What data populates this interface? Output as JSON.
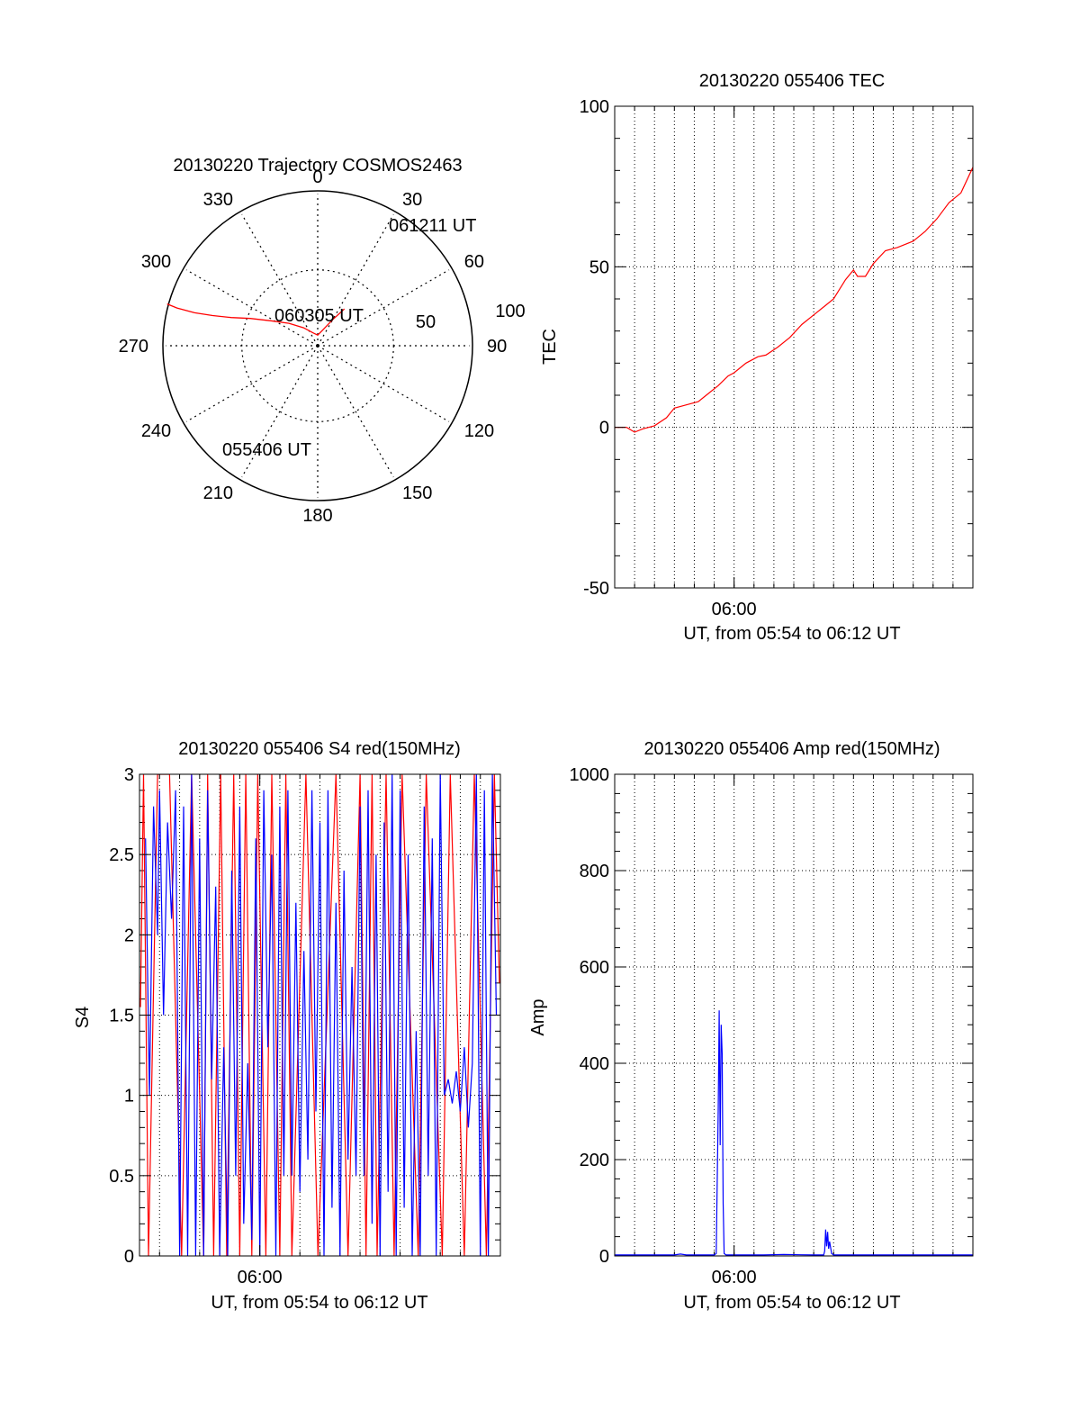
{
  "colors": {
    "red": "#ff0000",
    "blue": "#0000ff",
    "axis": "#000000",
    "grid": "#000000"
  },
  "chart_data": [
    {
      "type": "polar",
      "title": "20130220 Trajectory COSMOS2463",
      "angle_labels": [
        "0",
        "30",
        "60",
        "90",
        "120",
        "150",
        "180",
        "210",
        "240",
        "270",
        "300",
        "330"
      ],
      "radial_labels": [
        "50",
        "100"
      ],
      "radial_values": [
        50,
        100
      ],
      "series": [
        {
          "color": "red",
          "points": [
            [
              36,
              30
            ],
            [
              30,
              20
            ],
            [
              18,
              11
            ],
            [
              0,
              7
            ],
            [
              -20,
              9
            ],
            [
              -38,
              15
            ],
            [
              -52,
              24
            ],
            [
              -62,
              35
            ],
            [
              -68,
              48
            ],
            [
              -72,
              60
            ],
            [
              -74,
              72
            ],
            [
              -75,
              84
            ],
            [
              -75,
              96
            ],
            [
              -74.5,
              103
            ]
          ]
        }
      ],
      "annotations": [
        {
          "text": "061211 UT",
          "az": 36,
          "r": 30
        },
        {
          "text": "060305 UT",
          "az": -80,
          "r": -60
        },
        {
          "text": "055406 UT",
          "az": 235,
          "r": 92
        }
      ]
    },
    {
      "type": "line",
      "title": "20130220 055406 TEC",
      "xlabel": "UT, from 05:54 to 06:12 UT",
      "ylabel": "TEC",
      "xlim": [
        0,
        18
      ],
      "ylim": [
        -50,
        100
      ],
      "x_ticks": [
        {
          "value": 6,
          "label": "06:00"
        }
      ],
      "y_ticks": [
        {
          "value": -50,
          "label": "-50"
        },
        {
          "value": 0,
          "label": "0"
        },
        {
          "value": 50,
          "label": "50"
        },
        {
          "value": 100,
          "label": "100"
        }
      ],
      "series": [
        {
          "color": "red",
          "x": [
            0,
            0.6,
            1.0,
            1.4,
            2.0,
            2.6,
            3.0,
            3.6,
            4.2,
            4.6,
            5.2,
            5.7,
            6.0,
            6.6,
            7.2,
            7.6,
            8.2,
            8.8,
            9.4,
            10.0,
            10.6,
            11.0,
            11.6,
            12.0,
            12.2,
            12.6,
            13.0,
            13.6,
            14.2,
            15.0,
            15.6,
            16.2,
            16.8,
            17.4,
            18.0
          ],
          "y": [
            0,
            0,
            -1.5,
            -0.5,
            0.5,
            3,
            6,
            7,
            8,
            10,
            13,
            16,
            17,
            20,
            22,
            22.5,
            25,
            28,
            32,
            35,
            38,
            40,
            46,
            49,
            47,
            47,
            51,
            55,
            56,
            58,
            61,
            65,
            70,
            73,
            81
          ]
        }
      ]
    },
    {
      "type": "line",
      "title": "20130220 055406 S4 red(150MHz)",
      "xlabel": "UT, from 05:54 to 06:12 UT",
      "ylabel": "S4",
      "xlim": [
        0,
        18
      ],
      "ylim": [
        0,
        3
      ],
      "x_ticks": [
        {
          "value": 6,
          "label": "06:00"
        }
      ],
      "y_ticks": [
        {
          "value": 0,
          "label": "0"
        },
        {
          "value": 0.5,
          "label": "0.5"
        },
        {
          "value": 1,
          "label": "1"
        },
        {
          "value": 1.5,
          "label": "1.5"
        },
        {
          "value": 2,
          "label": "2"
        },
        {
          "value": 2.5,
          "label": "2.5"
        },
        {
          "value": 3,
          "label": "3"
        }
      ],
      "series": [
        {
          "color": "red",
          "x": [
            0.05,
            0.2,
            0.45,
            0.9,
            1.5,
            2.1,
            2.6,
            3.2,
            3.4,
            3.7,
            4.05,
            4.35,
            4.7,
            5.0,
            5.3,
            5.6,
            5.9,
            6.3,
            6.6,
            7.0,
            7.3,
            7.6,
            8.3,
            8.9,
            9.8,
            10.4,
            11.0,
            11.3,
            11.6,
            11.85,
            12.3,
            12.7,
            13.1,
            13.9,
            14.3,
            15.1,
            15.5,
            16.2,
            16.7,
            17.3,
            17.7,
            17.95
          ],
          "y": [
            1.55,
            3,
            0,
            3,
            3,
            0,
            3,
            0,
            3,
            0,
            3,
            0,
            3,
            0,
            3,
            0,
            3,
            0,
            3,
            0,
            3,
            0,
            3,
            0,
            3,
            0,
            3,
            0,
            3,
            0,
            3,
            0,
            3,
            0,
            3,
            0,
            3,
            0,
            3,
            0,
            3,
            1.7
          ]
        },
        {
          "color": "blue",
          "x": [
            0.3,
            0.5,
            0.7,
            0.9,
            1.0,
            1.2,
            1.4,
            1.6,
            1.8,
            2.0,
            2.2,
            2.4,
            2.6,
            2.8,
            3.0,
            3.2,
            3.4,
            3.6,
            3.8,
            4.0,
            4.2,
            4.4,
            4.6,
            4.8,
            5.0,
            5.2,
            5.4,
            5.6,
            5.8,
            6.0,
            6.2,
            6.4,
            6.6,
            6.8,
            7.0,
            7.2,
            7.4,
            7.6,
            7.8,
            8.0,
            8.2,
            8.4,
            8.6,
            8.8,
            9.0,
            9.2,
            9.4,
            9.6,
            9.8,
            10.0,
            10.2,
            10.4,
            10.6,
            10.8,
            11.0,
            11.2,
            11.4,
            11.6,
            11.8,
            12.0,
            12.2,
            12.4,
            12.6,
            12.8,
            13.0,
            13.2,
            13.4,
            13.6,
            13.8,
            14.0,
            14.2,
            14.4,
            14.6,
            14.8,
            15.0,
            15.2,
            15.4,
            15.6,
            15.8,
            16.0,
            16.2,
            16.4,
            16.6,
            16.8,
            17.0,
            17.2,
            17.4,
            17.6,
            17.8
          ],
          "y": [
            2.6,
            1.0,
            2.8,
            2.0,
            2.9,
            1.5,
            2.7,
            2.1,
            2.9,
            0,
            2.8,
            0,
            3,
            0,
            2.6,
            0,
            2.9,
            1.1,
            2.3,
            0,
            1.3,
            0,
            2.4,
            0.5,
            2.8,
            0.2,
            1.2,
            0.1,
            2.6,
            0,
            2.9,
            1.3,
            2.5,
            0,
            2.8,
            0.5,
            2.9,
            0.5,
            2.2,
            0.4,
            1.9,
            0.6,
            2.9,
            0.9,
            2.7,
            0,
            2.9,
            0.3,
            2.2,
            0,
            2.4,
            0.6,
            1.8,
            0.5,
            2.8,
            0.5,
            2.9,
            0.2,
            2.5,
            0,
            2.7,
            0.4,
            3,
            0,
            2.9,
            0.3,
            2.5,
            0,
            1.4,
            0,
            2.8,
            0.5,
            2.6,
            0,
            3,
            1.0,
            1.1,
            0.95,
            1.15,
            0.9,
            1.3,
            0.8,
            1.2,
            3,
            0,
            2.9,
            0,
            3,
            1.5
          ]
        }
      ]
    },
    {
      "type": "line",
      "title": "20130220 055406 Amp red(150MHz)",
      "xlabel": "UT, from 05:54 to 06:12 UT",
      "ylabel": "Amp",
      "xlim": [
        0,
        18
      ],
      "ylim": [
        0,
        1000
      ],
      "x_ticks": [
        {
          "value": 6,
          "label": "06:00"
        }
      ],
      "y_ticks": [
        {
          "value": 0,
          "label": "0"
        },
        {
          "value": 200,
          "label": "200"
        },
        {
          "value": 400,
          "label": "400"
        },
        {
          "value": 600,
          "label": "600"
        },
        {
          "value": 800,
          "label": "800"
        },
        {
          "value": 1000,
          "label": "1000"
        }
      ],
      "series": [
        {
          "color": "blue",
          "x": [
            0,
            3.0,
            3.3,
            3.6,
            5.0,
            5.1,
            5.2,
            5.25,
            5.3,
            5.35,
            5.4,
            5.45,
            5.5,
            5.6,
            7.5,
            8.5,
            10.0,
            10.5,
            10.55,
            10.6,
            10.65,
            10.7,
            10.75,
            10.8,
            10.9,
            11.0,
            12.0,
            18.0
          ],
          "y": [
            2,
            2,
            4,
            2,
            2,
            5,
            300,
            510,
            230,
            480,
            420,
            110,
            5,
            2,
            2,
            3,
            2,
            2,
            10,
            55,
            20,
            50,
            15,
            30,
            5,
            2,
            2,
            2
          ]
        }
      ]
    }
  ]
}
